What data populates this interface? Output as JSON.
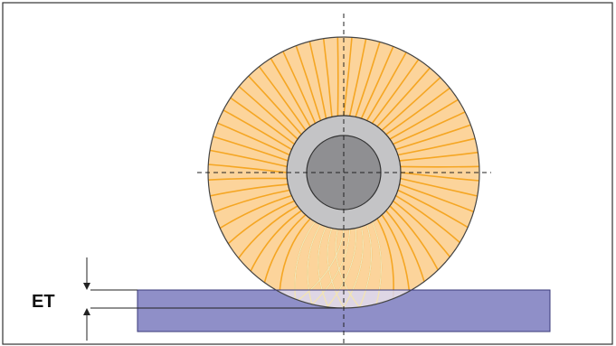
{
  "diagram": {
    "engagement_label": "ET",
    "colors": {
      "frame": "#333333",
      "brush_fill": "#fcd49b",
      "brush_filament": "#f5a623",
      "brush_outline": "#444444",
      "hub_outer": "#c4c4c6",
      "hub_inner": "#8f8f92",
      "workpiece": "#8f8fc8",
      "workpiece_overlap": "#d8d6f2",
      "centerline": "#222222"
    },
    "filament_count": 60
  }
}
